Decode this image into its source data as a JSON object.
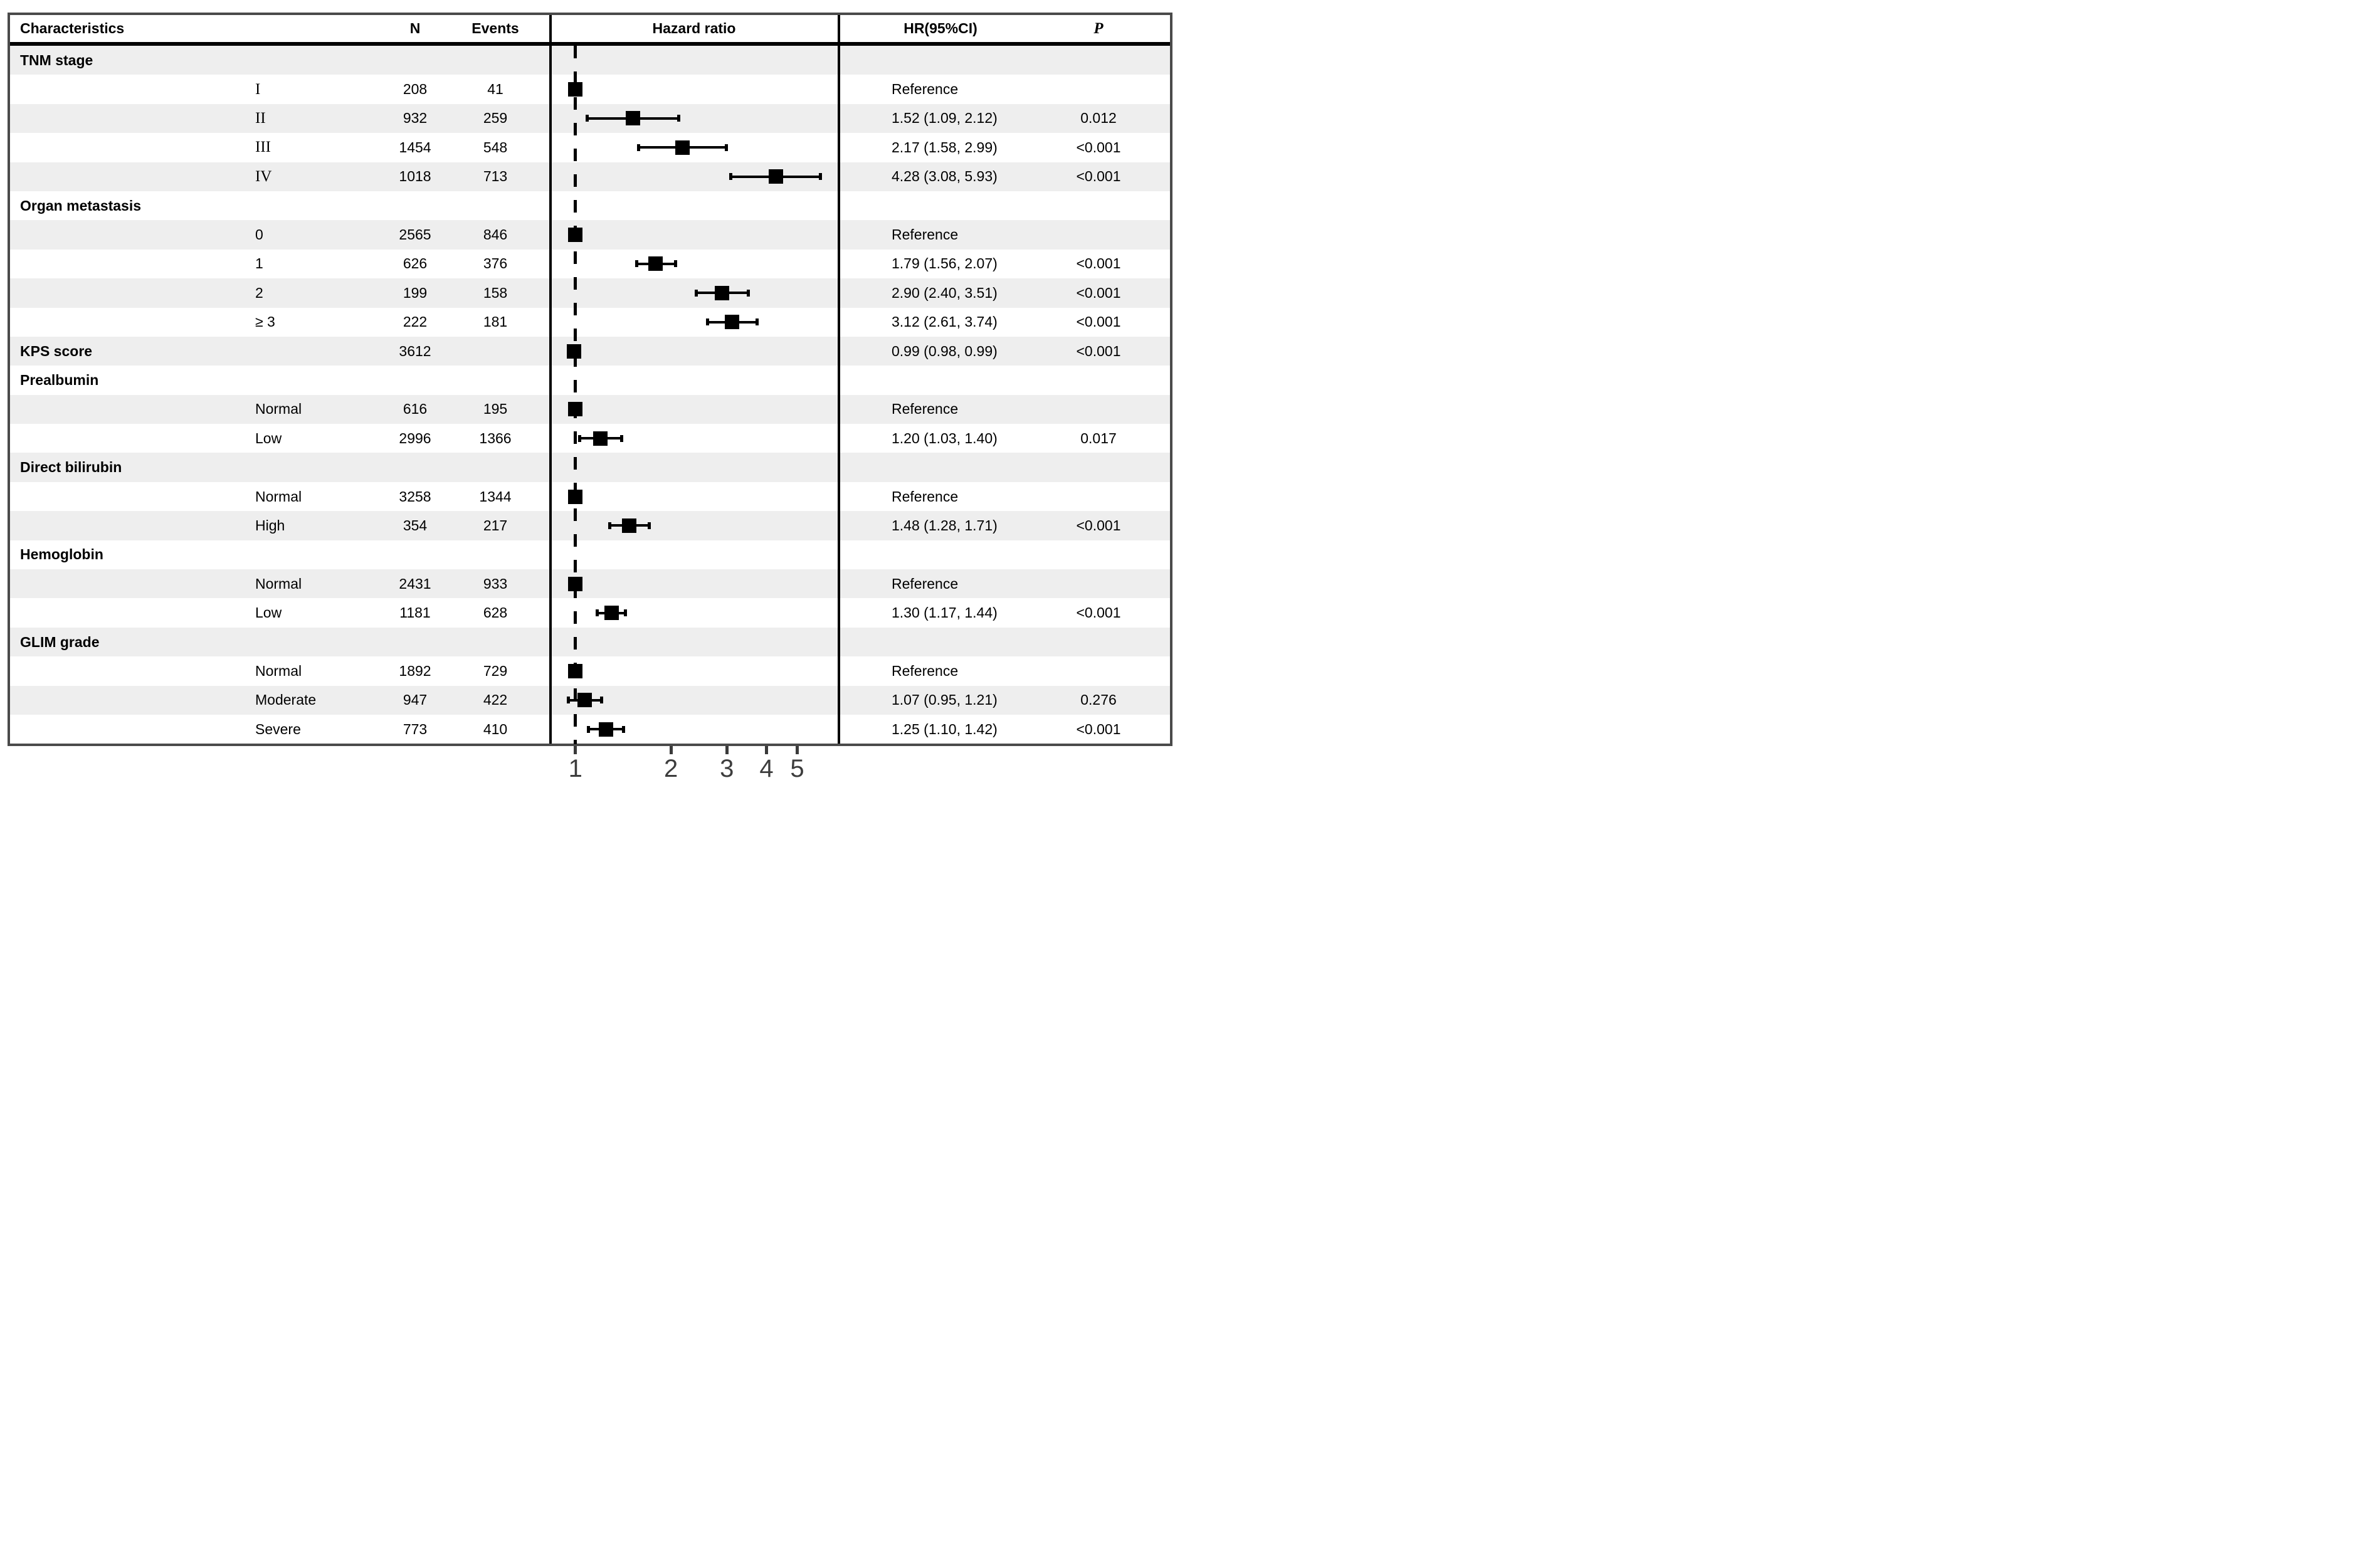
{
  "figure": {
    "stripe_color": "#eeeeee",
    "border_color": "#4a4a4a",
    "marker_color": "#000000",
    "axis_label_color": "#3d3d3d"
  },
  "header": {
    "characteristics": "Characteristics",
    "n": "N",
    "events": "Events",
    "hazard_ratio": "Hazard ratio",
    "hr_ci": "HR(95%CI)",
    "p": "P"
  },
  "axis": {
    "scale": "log",
    "tick_values": [
      1,
      2,
      3,
      4,
      5
    ],
    "tick_labels": [
      "1",
      "2",
      "3",
      "4",
      "5"
    ],
    "reference_value": 1
  },
  "rows": [
    {
      "group": true,
      "label": "TNM stage"
    },
    {
      "group": false,
      "label": "I",
      "roman": true,
      "n": "208",
      "events": "41",
      "hr": 1.0,
      "ref": true,
      "hr_text": "Reference",
      "p_text": ""
    },
    {
      "group": false,
      "label": "II",
      "roman": true,
      "n": "932",
      "events": "259",
      "hr": 1.52,
      "lo": 1.09,
      "hi": 2.12,
      "hr_text": "1.52 (1.09, 2.12)",
      "p_text": "0.012"
    },
    {
      "group": false,
      "label": "III",
      "roman": true,
      "n": "1454",
      "events": "548",
      "hr": 2.17,
      "lo": 1.58,
      "hi": 2.99,
      "hr_text": "2.17 (1.58, 2.99)",
      "p_text": "<0.001"
    },
    {
      "group": false,
      "label": "IV",
      "roman": true,
      "n": "1018",
      "events": "713",
      "hr": 4.28,
      "lo": 3.08,
      "hi": 5.93,
      "hr_text": "4.28 (3.08, 5.93)",
      "p_text": "<0.001"
    },
    {
      "group": true,
      "label": "Organ metastasis"
    },
    {
      "group": false,
      "label": "0",
      "n": "2565",
      "events": "846",
      "hr": 1.0,
      "ref": true,
      "hr_text": "Reference",
      "p_text": ""
    },
    {
      "group": false,
      "label": "1",
      "n": "626",
      "events": "376",
      "hr": 1.79,
      "lo": 1.56,
      "hi": 2.07,
      "hr_text": "1.79 (1.56, 2.07)",
      "p_text": "<0.001"
    },
    {
      "group": false,
      "label": "2",
      "n": "199",
      "events": "158",
      "hr": 2.9,
      "lo": 2.4,
      "hi": 3.51,
      "hr_text": "2.90 (2.40, 3.51)",
      "p_text": "<0.001"
    },
    {
      "group": false,
      "label": "≥ 3",
      "n": "222",
      "events": "181",
      "hr": 3.12,
      "lo": 2.61,
      "hi": 3.74,
      "hr_text": "3.12 (2.61, 3.74)",
      "p_text": "<0.001"
    },
    {
      "group": true,
      "label": "KPS score",
      "n": "3612",
      "events": "",
      "hr": 0.99,
      "lo": 0.98,
      "hi": 0.99,
      "hr_text": "0.99 (0.98, 0.99)",
      "p_text": "<0.001"
    },
    {
      "group": true,
      "label": "Prealbumin"
    },
    {
      "group": false,
      "label": "Normal",
      "n": "616",
      "events": "195",
      "hr": 1.0,
      "ref": true,
      "hr_text": "Reference",
      "p_text": ""
    },
    {
      "group": false,
      "label": "Low",
      "n": "2996",
      "events": "1366",
      "hr": 1.2,
      "lo": 1.03,
      "hi": 1.4,
      "hr_text": "1.20 (1.03, 1.40)",
      "p_text": "0.017"
    },
    {
      "group": true,
      "label": "Direct bilirubin"
    },
    {
      "group": false,
      "label": "Normal",
      "n": "3258",
      "events": "1344",
      "hr": 1.0,
      "ref": true,
      "hr_text": "Reference",
      "p_text": ""
    },
    {
      "group": false,
      "label": "High",
      "n": "354",
      "events": "217",
      "hr": 1.48,
      "lo": 1.28,
      "hi": 1.71,
      "hr_text": "1.48 (1.28, 1.71)",
      "p_text": "<0.001"
    },
    {
      "group": true,
      "label": "Hemoglobin"
    },
    {
      "group": false,
      "label": "Normal",
      "n": "2431",
      "events": "933",
      "hr": 1.0,
      "ref": true,
      "hr_text": "Reference",
      "p_text": ""
    },
    {
      "group": false,
      "label": "Low",
      "n": "1181",
      "events": "628",
      "hr": 1.3,
      "lo": 1.17,
      "hi": 1.44,
      "hr_text": "1.30 (1.17, 1.44)",
      "p_text": "<0.001"
    },
    {
      "group": true,
      "label": "GLIM grade"
    },
    {
      "group": false,
      "label": "Normal",
      "n": "1892",
      "events": "729",
      "hr": 1.0,
      "ref": true,
      "hr_text": "Reference",
      "p_text": ""
    },
    {
      "group": false,
      "label": "Moderate",
      "n": "947",
      "events": "422",
      "hr": 1.07,
      "lo": 0.95,
      "hi": 1.21,
      "hr_text": "1.07 (0.95, 1.21)",
      "p_text": "0.276"
    },
    {
      "group": false,
      "label": "Severe",
      "n": "773",
      "events": "410",
      "hr": 1.25,
      "lo": 1.1,
      "hi": 1.42,
      "hr_text": "1.25 (1.10, 1.42)",
      "p_text": "<0.001"
    }
  ],
  "chart_data": {
    "type": "scatter",
    "subtype": "forest-plot",
    "title": "",
    "xlabel": "Hazard ratio",
    "x_scale": "log",
    "x_ticks": [
      1,
      2,
      3,
      4,
      5
    ],
    "xlim": [
      0.83,
      6.75
    ],
    "reference_line": 1,
    "grid": false,
    "legend": "none",
    "columns": [
      "Characteristics",
      "N",
      "Events",
      "Hazard ratio",
      "HR(95%CI)",
      "P"
    ],
    "series": [
      {
        "name": "TNM stage II",
        "hr": 1.52,
        "ci": [
          1.09,
          2.12
        ],
        "n": 932,
        "events": 259,
        "p": "0.012"
      },
      {
        "name": "TNM stage III",
        "hr": 2.17,
        "ci": [
          1.58,
          2.99
        ],
        "n": 1454,
        "events": 548,
        "p": "<0.001"
      },
      {
        "name": "TNM stage IV",
        "hr": 4.28,
        "ci": [
          3.08,
          5.93
        ],
        "n": 1018,
        "events": 713,
        "p": "<0.001"
      },
      {
        "name": "Organ metastasis 1",
        "hr": 1.79,
        "ci": [
          1.56,
          2.07
        ],
        "n": 626,
        "events": 376,
        "p": "<0.001"
      },
      {
        "name": "Organ metastasis 2",
        "hr": 2.9,
        "ci": [
          2.4,
          3.51
        ],
        "n": 199,
        "events": 158,
        "p": "<0.001"
      },
      {
        "name": "Organ metastasis ≥ 3",
        "hr": 3.12,
        "ci": [
          2.61,
          3.74
        ],
        "n": 222,
        "events": 181,
        "p": "<0.001"
      },
      {
        "name": "KPS score",
        "hr": 0.99,
        "ci": [
          0.98,
          0.99
        ],
        "n": 3612,
        "events": null,
        "p": "<0.001"
      },
      {
        "name": "Prealbumin Low",
        "hr": 1.2,
        "ci": [
          1.03,
          1.4
        ],
        "n": 2996,
        "events": 1366,
        "p": "0.017"
      },
      {
        "name": "Direct bilirubin High",
        "hr": 1.48,
        "ci": [
          1.28,
          1.71
        ],
        "n": 354,
        "events": 217,
        "p": "<0.001"
      },
      {
        "name": "Hemoglobin Low",
        "hr": 1.3,
        "ci": [
          1.17,
          1.44
        ],
        "n": 1181,
        "events": 628,
        "p": "<0.001"
      },
      {
        "name": "GLIM grade Moderate",
        "hr": 1.07,
        "ci": [
          0.95,
          1.21
        ],
        "n": 947,
        "events": 422,
        "p": "0.276"
      },
      {
        "name": "GLIM grade Severe",
        "hr": 1.25,
        "ci": [
          1.1,
          1.42
        ],
        "n": 773,
        "events": 410,
        "p": "<0.001"
      }
    ],
    "reference_rows": [
      {
        "name": "TNM stage I",
        "n": 208,
        "events": 41
      },
      {
        "name": "Organ metastasis 0",
        "n": 2565,
        "events": 846
      },
      {
        "name": "Prealbumin Normal",
        "n": 616,
        "events": 195
      },
      {
        "name": "Direct bilirubin Normal",
        "n": 3258,
        "events": 1344
      },
      {
        "name": "Hemoglobin Normal",
        "n": 2431,
        "events": 933
      },
      {
        "name": "GLIM grade Normal",
        "n": 1892,
        "events": 729
      }
    ]
  }
}
